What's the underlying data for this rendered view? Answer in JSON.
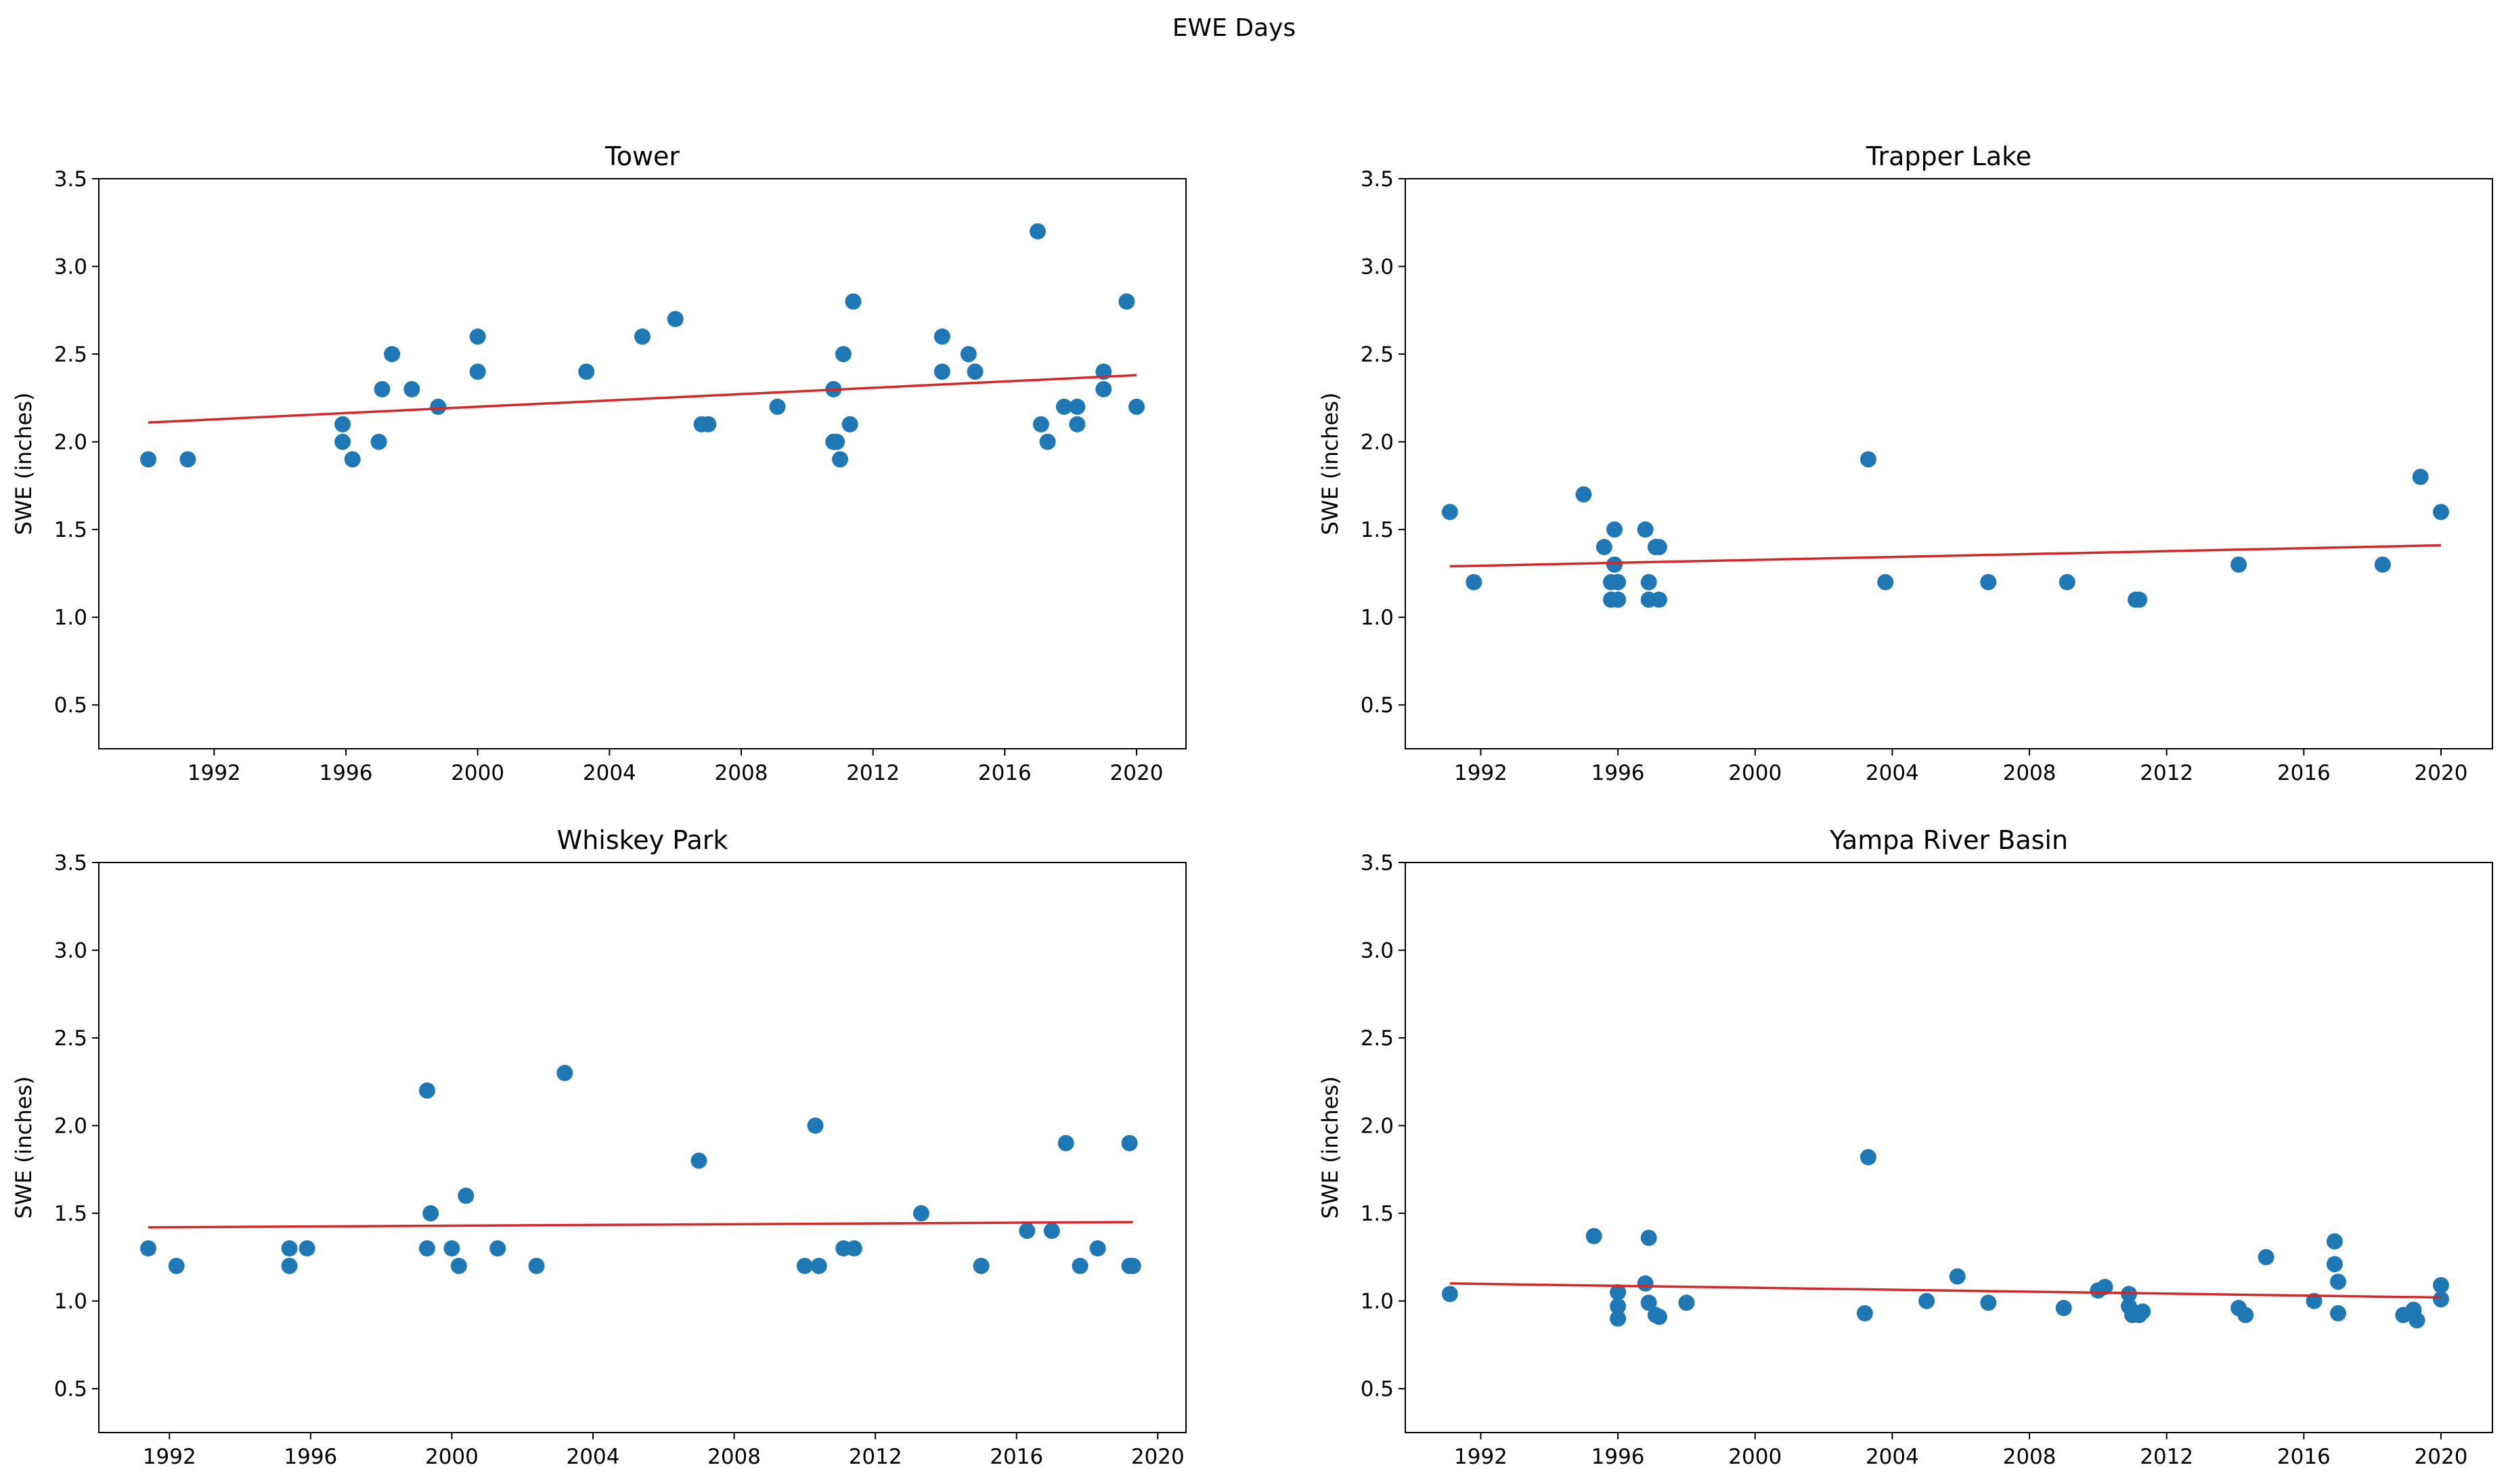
{
  "figure": {
    "suptitle": "EWE Days"
  },
  "colors": {
    "scatter": "#1f77b4",
    "trend": "#d62728",
    "axes": "#000000",
    "background": "#ffffff"
  },
  "chart_data": [
    {
      "type": "scatter",
      "title": "Tower",
      "xlabel": "",
      "ylabel": "SWE (inches)",
      "xlim": [
        1988.5,
        2021.5
      ],
      "ylim": [
        0.25,
        3.5
      ],
      "xticks": [
        "1992",
        "1996",
        "2000",
        "2004",
        "2008",
        "2012",
        "2016",
        "2020"
      ],
      "yticks": [
        "0.5",
        "1.0",
        "1.5",
        "2.0",
        "2.5",
        "3.0",
        "3.5"
      ],
      "points": {
        "x": [
          1990.0,
          1991.2,
          1995.9,
          1995.9,
          1996.2,
          1997.0,
          1997.1,
          1997.4,
          1998.0,
          1998.8,
          2000.0,
          2000.0,
          2003.3,
          2005.0,
          2006.0,
          2006.8,
          2007.0,
          2009.1,
          2010.8,
          2010.8,
          2010.9,
          2011.0,
          2011.1,
          2011.3,
          2011.4,
          2014.1,
          2014.1,
          2014.9,
          2015.1,
          2017.0,
          2017.1,
          2017.3,
          2017.8,
          2018.2,
          2018.2,
          2019.0,
          2019.0,
          2019.7,
          2020.0
        ],
        "y": [
          1.9,
          1.9,
          2.1,
          2.0,
          1.9,
          2.0,
          2.3,
          2.5,
          2.3,
          2.2,
          2.6,
          2.4,
          2.4,
          2.6,
          2.7,
          2.1,
          2.1,
          2.2,
          2.3,
          2.0,
          2.0,
          1.9,
          2.5,
          2.1,
          2.8,
          2.6,
          2.4,
          2.5,
          2.4,
          3.2,
          2.1,
          2.0,
          2.2,
          2.2,
          2.1,
          2.3,
          2.4,
          2.8,
          2.2
        ]
      },
      "trend": {
        "x": [
          1990.0,
          2020.0
        ],
        "y": [
          2.11,
          2.38
        ]
      }
    },
    {
      "type": "scatter",
      "title": "Trapper Lake",
      "xlabel": "",
      "ylabel": "SWE (inches)",
      "xlim": [
        1989.8,
        2021.5
      ],
      "ylim": [
        0.25,
        3.5
      ],
      "xticks": [
        "1992",
        "1996",
        "2000",
        "2004",
        "2008",
        "2012",
        "2016",
        "2020"
      ],
      "yticks": [
        "0.5",
        "1.0",
        "1.5",
        "2.0",
        "2.5",
        "3.0",
        "3.5"
      ],
      "points": {
        "x": [
          1991.1,
          1991.8,
          1995.0,
          1995.6,
          1995.8,
          1995.8,
          1995.9,
          1995.9,
          1996.0,
          1996.0,
          1996.0,
          1996.8,
          1996.9,
          1996.9,
          1997.1,
          1997.2,
          1997.2,
          2003.3,
          2003.8,
          2006.8,
          2009.1,
          2011.1,
          2011.2,
          2014.1,
          2018.3,
          2019.4,
          2020.0
        ],
        "y": [
          1.6,
          1.2,
          1.7,
          1.4,
          1.2,
          1.1,
          1.5,
          1.3,
          1.2,
          1.1,
          1.1,
          1.5,
          1.2,
          1.1,
          1.4,
          1.4,
          1.1,
          1.9,
          1.2,
          1.2,
          1.2,
          1.1,
          1.1,
          1.3,
          1.3,
          1.8,
          1.6
        ]
      },
      "trend": {
        "x": [
          1991.1,
          2020.0
        ],
        "y": [
          1.29,
          1.41
        ]
      }
    },
    {
      "type": "scatter",
      "title": "Whiskey Park",
      "xlabel": "",
      "ylabel": "SWE (inches)",
      "xlim": [
        1990.0,
        2020.8
      ],
      "ylim": [
        0.25,
        3.5
      ],
      "xticks": [
        "1992",
        "1996",
        "2000",
        "2004",
        "2008",
        "2012",
        "2016",
        "2020"
      ],
      "yticks": [
        "0.5",
        "1.0",
        "1.5",
        "2.0",
        "2.5",
        "3.0",
        "3.5"
      ],
      "points": {
        "x": [
          1991.4,
          1992.2,
          1995.4,
          1995.4,
          1995.9,
          1999.3,
          1999.4,
          1999.3,
          2000.0,
          2000.2,
          2000.4,
          2001.3,
          2002.4,
          2003.2,
          2007.0,
          2010.0,
          2010.3,
          2010.4,
          2011.1,
          2011.4,
          2013.3,
          2015.0,
          2016.3,
          2017.0,
          2017.4,
          2017.8,
          2018.3,
          2019.2,
          2019.2,
          2019.3
        ],
        "y": [
          1.3,
          1.2,
          1.3,
          1.2,
          1.3,
          2.2,
          1.5,
          1.3,
          1.3,
          1.2,
          1.6,
          1.3,
          1.2,
          2.3,
          1.8,
          1.2,
          2.0,
          1.2,
          1.3,
          1.3,
          1.5,
          1.2,
          1.4,
          1.4,
          1.9,
          1.2,
          1.3,
          1.9,
          1.2,
          1.2
        ]
      },
      "trend": {
        "x": [
          1991.4,
          2019.3
        ],
        "y": [
          1.42,
          1.45
        ]
      }
    },
    {
      "type": "scatter",
      "title": "Yampa River Basin",
      "xlabel": "",
      "ylabel": "SWE (inches)",
      "xlim": [
        1989.8,
        2021.5
      ],
      "ylim": [
        0.25,
        3.5
      ],
      "xticks": [
        "1992",
        "1996",
        "2000",
        "2004",
        "2008",
        "2012",
        "2016",
        "2020"
      ],
      "yticks": [
        "0.5",
        "1.0",
        "1.5",
        "2.0",
        "2.5",
        "3.0",
        "3.5"
      ],
      "points": {
        "x": [
          1991.1,
          1995.3,
          1996.0,
          1996.0,
          1996.0,
          1996.8,
          1996.9,
          1996.9,
          1997.1,
          1997.2,
          1998.0,
          2003.2,
          2003.3,
          2005.0,
          2005.9,
          2006.8,
          2009.0,
          2010.0,
          2010.2,
          2010.9,
          2010.9,
          2011.0,
          2011.0,
          2011.2,
          2011.3,
          2014.1,
          2014.3,
          2014.9,
          2016.3,
          2016.9,
          2016.9,
          2017.0,
          2017.0,
          2018.9,
          2019.2,
          2019.3,
          2020.0,
          2020.0
        ],
        "y": [
          1.04,
          1.37,
          1.05,
          0.97,
          0.9,
          1.1,
          0.99,
          1.36,
          0.92,
          0.91,
          0.99,
          0.93,
          1.82,
          1.0,
          1.14,
          0.99,
          0.96,
          1.06,
          1.08,
          1.04,
          0.97,
          0.92,
          0.94,
          0.92,
          0.94,
          0.96,
          0.92,
          1.25,
          1.0,
          1.34,
          1.21,
          1.11,
          0.93,
          0.92,
          0.95,
          0.89,
          1.09,
          1.01
        ]
      },
      "trend": {
        "x": [
          1991.1,
          2020.0
        ],
        "y": [
          1.1,
          1.02
        ]
      }
    }
  ]
}
